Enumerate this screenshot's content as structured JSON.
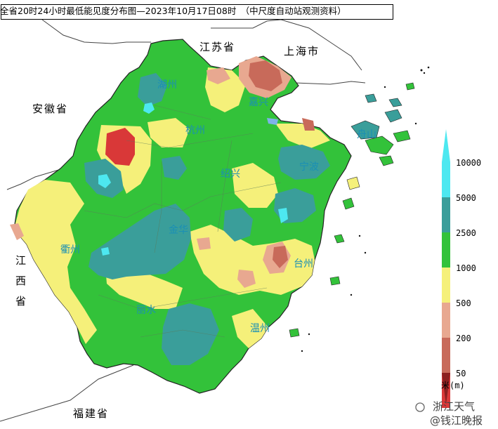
{
  "title": "全省20时24小时最低能见度分布图—2023年10月17日08时　（中尺度自动站观测资料）",
  "provinces": {
    "jiangsu": "江苏省",
    "shanghai": "上海市",
    "anhui": "安徽省",
    "jiangxi_1": "江",
    "jiangxi_2": "西",
    "jiangxi_3": "省",
    "fujian": "福建省"
  },
  "cities": {
    "huzhou": "湖州",
    "jiaxing": "嘉兴",
    "hangzhou": "杭州",
    "zhoushan": "舟山",
    "ningbo": "宁波",
    "shaoxing": "绍兴",
    "jinhua": "金华",
    "quzhou": "衢州",
    "taizhou": "台州",
    "lishui": "丽水",
    "wenzhou": "温州"
  },
  "legend": {
    "unit": "米(m)",
    "levels": [
      {
        "label": "10000",
        "color": "#4de8f0"
      },
      {
        "label": "5000",
        "color": "#3a9e9a"
      },
      {
        "label": "2500",
        "color": "#33c23a"
      },
      {
        "label": "1000",
        "color": "#f5f07a"
      },
      {
        "label": "500",
        "color": "#e8a890"
      },
      {
        "label": "200",
        "color": "#c86a5a"
      },
      {
        "label": "50",
        "color": "#d93838"
      },
      {
        "label": "",
        "color": "#8b2020"
      }
    ]
  },
  "watermark": {
    "line1": "浙江天气",
    "line2": "@钱江晚报"
  }
}
